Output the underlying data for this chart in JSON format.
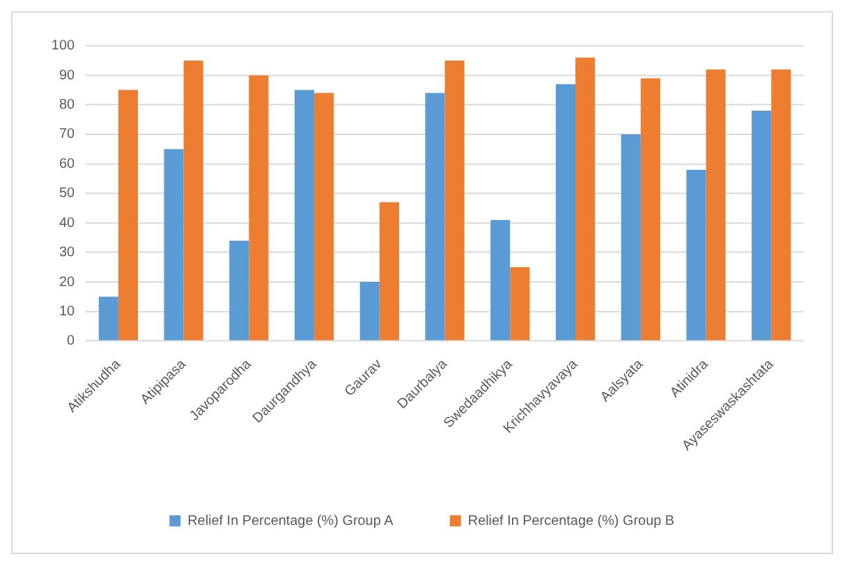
{
  "chart_data": {
    "type": "bar",
    "categories": [
      "Atikshudha",
      "Atipipasa",
      "Javoparodha",
      "Daurgandhya",
      "Gaurav",
      "Daurbalya",
      "Swedaadhikya",
      "Krichhavyavaya",
      "Aalsyata",
      "Atinidra",
      "Ayaseswaskashtata"
    ],
    "series": [
      {
        "name": "Relief In Percentage (%) Group A",
        "color": "#5b9bd5",
        "values": [
          15,
          65,
          34,
          85,
          20,
          84,
          41,
          87,
          70,
          58,
          78
        ]
      },
      {
        "name": "Relief In Percentage (%) Group B",
        "color": "#ed7d31",
        "values": [
          85,
          95,
          90,
          84,
          47,
          95,
          25,
          96,
          89,
          92,
          92
        ]
      }
    ],
    "ylim": [
      0,
      100
    ],
    "yticks": [
      0,
      10,
      20,
      30,
      40,
      50,
      60,
      70,
      80,
      90,
      100
    ],
    "grid": "y",
    "legend": "bottom"
  }
}
